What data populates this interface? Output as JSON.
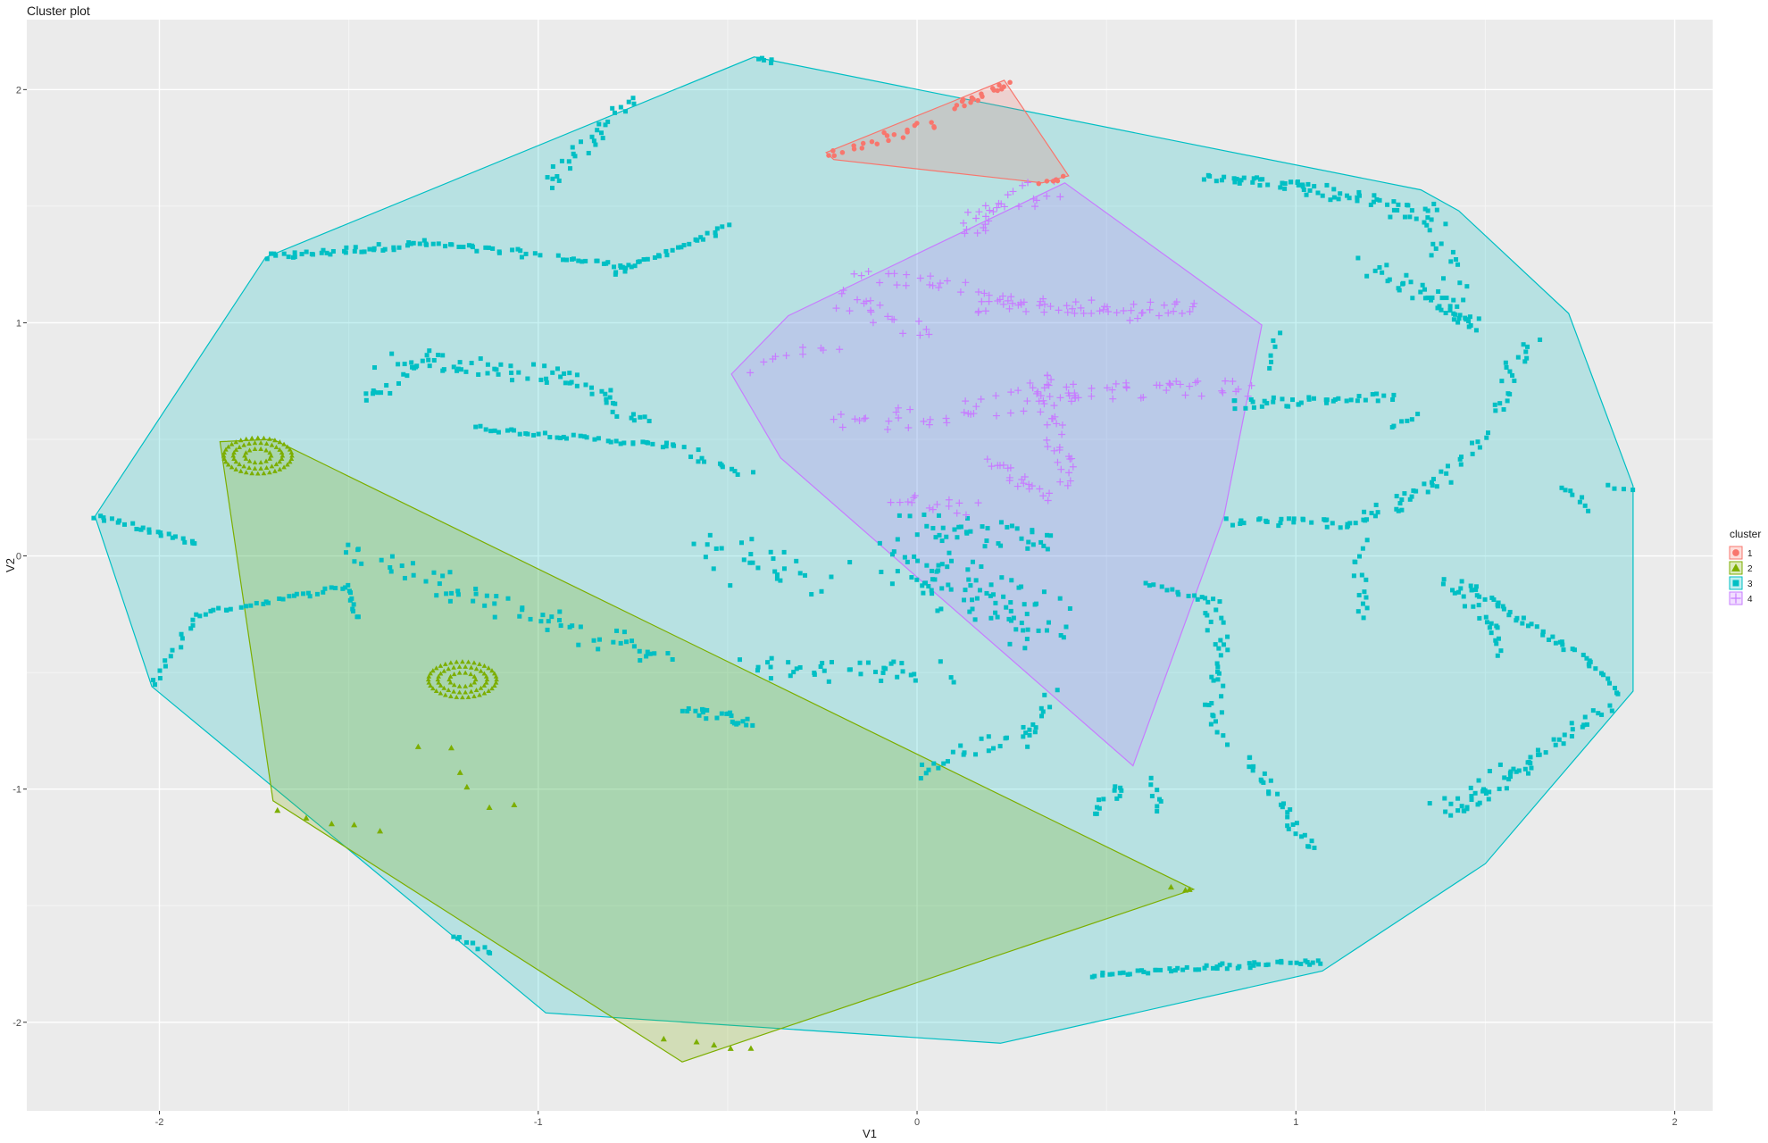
{
  "chart_data": {
    "type": "scatter",
    "title": "Cluster plot",
    "xlabel": "V1",
    "ylabel": "V2",
    "xlim": [
      -2.35,
      2.1
    ],
    "ylim": [
      -2.38,
      2.3
    ],
    "xticks": [
      -2,
      -1,
      0,
      1,
      2
    ],
    "yticks": [
      -2,
      -1,
      0,
      1,
      2
    ],
    "grid": true,
    "background": "#ebebeb",
    "legend": {
      "title": "cluster",
      "position": "right"
    },
    "series": [
      {
        "name": "1",
        "color": "#f8766d",
        "shape": "circle",
        "hull": [
          [
            -0.24,
            1.73
          ],
          [
            0.08,
            1.94
          ],
          [
            0.23,
            2.04
          ],
          [
            0.4,
            1.63
          ],
          [
            0.33,
            1.6
          ],
          [
            -0.22,
            1.7
          ]
        ],
        "segments": [
          {
            "from": [
              -0.23,
              1.72
            ],
            "to": [
              0.05,
              1.86
            ],
            "n": 22,
            "spread": 0.02
          },
          {
            "from": [
              0.1,
              1.92
            ],
            "to": [
              0.24,
              2.02
            ],
            "n": 18,
            "spread": 0.015
          },
          {
            "from": [
              0.33,
              1.6
            ],
            "to": [
              0.39,
              1.62
            ],
            "n": 6,
            "spread": 0.01
          }
        ]
      },
      {
        "name": "2",
        "color": "#7cae00",
        "shape": "triangle",
        "hull": [
          [
            -1.84,
            0.49
          ],
          [
            -1.7,
            0.5
          ],
          [
            0.73,
            -1.43
          ],
          [
            -0.62,
            -2.17
          ],
          [
            -1.7,
            -1.05
          ]
        ],
        "segments": [
          {
            "from": [
              -1.3,
              -0.8
            ],
            "to": [
              -1.1,
              -1.1
            ],
            "n": 6,
            "spread": 0.04
          },
          {
            "from": [
              -1.68,
              -1.1
            ],
            "to": [
              -1.4,
              -1.2
            ],
            "n": 5,
            "spread": 0.03
          },
          {
            "from": [
              -0.65,
              -2.08
            ],
            "to": [
              -0.45,
              -2.12
            ],
            "n": 5,
            "spread": 0.02
          },
          {
            "from": [
              0.68,
              -1.42
            ],
            "to": [
              0.72,
              -1.43
            ],
            "n": 3,
            "spread": 0.01
          }
        ],
        "rings": [
          {
            "center": [
              -1.74,
              0.43
            ],
            "radii": [
              0.035,
              0.065,
              0.09
            ]
          },
          {
            "center": [
              -1.2,
              -0.53
            ],
            "radii": [
              0.035,
              0.065,
              0.09
            ]
          }
        ]
      },
      {
        "name": "3",
        "color": "#00bfc4",
        "shape": "square",
        "hull": [
          [
            -2.17,
            0.17
          ],
          [
            -1.72,
            1.28
          ],
          [
            -0.43,
            2.14
          ],
          [
            1.33,
            1.57
          ],
          [
            1.43,
            1.48
          ],
          [
            1.72,
            1.04
          ],
          [
            1.89,
            0.3
          ],
          [
            1.89,
            -0.58
          ],
          [
            1.5,
            -1.32
          ],
          [
            1.07,
            -1.78
          ],
          [
            0.22,
            -2.09
          ],
          [
            -0.98,
            -1.96
          ],
          [
            -2.02,
            -0.56
          ]
        ],
        "segments": [
          {
            "from": [
              -1.72,
              1.28
            ],
            "to": [
              -1.3,
              1.34
            ],
            "n": 40,
            "spread": 0.015
          },
          {
            "from": [
              -1.3,
              1.34
            ],
            "to": [
              -1.0,
              1.29
            ],
            "n": 25,
            "spread": 0.015
          },
          {
            "from": [
              -0.95,
              1.28
            ],
            "to": [
              -0.75,
              1.24
            ],
            "n": 18,
            "spread": 0.01
          },
          {
            "from": [
              -0.8,
              1.21
            ],
            "to": [
              -0.5,
              1.41
            ],
            "n": 30,
            "spread": 0.01
          },
          {
            "from": [
              -0.98,
              1.58
            ],
            "to": [
              -0.75,
              1.97
            ],
            "n": 30,
            "spread": 0.03
          },
          {
            "from": [
              -0.42,
              2.13
            ],
            "to": [
              -0.38,
              2.12
            ],
            "n": 5,
            "spread": 0.01
          },
          {
            "from": [
              -1.45,
              0.66
            ],
            "to": [
              -1.34,
              0.85
            ],
            "n": 20,
            "spread": 0.05
          },
          {
            "from": [
              -1.34,
              0.85
            ],
            "to": [
              -0.93,
              0.77
            ],
            "n": 40,
            "spread": 0.04
          },
          {
            "from": [
              -0.93,
              0.77
            ],
            "to": [
              -0.72,
              0.58
            ],
            "n": 25,
            "spread": 0.03
          },
          {
            "from": [
              -1.17,
              0.55
            ],
            "to": [
              -0.65,
              0.47
            ],
            "n": 40,
            "spread": 0.01
          },
          {
            "from": [
              -0.65,
              0.47
            ],
            "to": [
              -0.45,
              0.35
            ],
            "n": 15,
            "spread": 0.02
          },
          {
            "from": [
              -2.17,
              0.17
            ],
            "to": [
              -1.9,
              0.05
            ],
            "n": 25,
            "spread": 0.01
          },
          {
            "from": [
              -2.02,
              -0.56
            ],
            "to": [
              -1.9,
              -0.25
            ],
            "n": 15,
            "spread": 0.01
          },
          {
            "from": [
              -1.9,
              -0.25
            ],
            "to": [
              -1.5,
              -0.13
            ],
            "n": 30,
            "spread": 0.01
          },
          {
            "from": [
              -1.5,
              -0.13
            ],
            "to": [
              -1.48,
              -0.27
            ],
            "n": 10,
            "spread": 0.01
          },
          {
            "from": [
              -1.48,
              0.02
            ],
            "to": [
              -0.75,
              -0.4
            ],
            "n": 60,
            "spread": 0.05
          },
          {
            "from": [
              -0.75,
              -0.4
            ],
            "to": [
              -0.65,
              -0.44
            ],
            "n": 8,
            "spread": 0.02
          },
          {
            "from": [
              -0.6,
              -0.65
            ],
            "to": [
              -0.45,
              -0.72
            ],
            "n": 25,
            "spread": 0.02
          },
          {
            "from": [
              -0.55,
              0.02
            ],
            "to": [
              -0.25,
              -0.1
            ],
            "n": 30,
            "spread": 0.1
          },
          {
            "from": [
              -0.45,
              -0.48
            ],
            "to": [
              0.08,
              -0.5
            ],
            "n": 40,
            "spread": 0.05
          },
          {
            "from": [
              -0.06,
              -0.0
            ],
            "to": [
              0.35,
              -0.3
            ],
            "n": 90,
            "spread": 0.1
          },
          {
            "from": [
              0.0,
              0.15
            ],
            "to": [
              0.35,
              0.05
            ],
            "n": 40,
            "spread": 0.05
          },
          {
            "from": [
              0.0,
              -0.93
            ],
            "to": [
              0.3,
              -0.72
            ],
            "n": 25,
            "spread": 0.03
          },
          {
            "from": [
              0.28,
              -0.8
            ],
            "to": [
              0.36,
              -0.58
            ],
            "n": 10,
            "spread": 0.02
          },
          {
            "from": [
              0.6,
              -0.12
            ],
            "to": [
              0.79,
              -0.2
            ],
            "n": 15,
            "spread": 0.01
          },
          {
            "from": [
              0.79,
              -0.2
            ],
            "to": [
              0.79,
              -0.78
            ],
            "n": 35,
            "spread": 0.03
          },
          {
            "from": [
              0.46,
              -1.1
            ],
            "to": [
              0.55,
              -0.98
            ],
            "n": 12,
            "spread": 0.02
          },
          {
            "from": [
              0.62,
              -0.96
            ],
            "to": [
              0.64,
              -1.1
            ],
            "n": 8,
            "spread": 0.01
          },
          {
            "from": [
              0.88,
              -0.86
            ],
            "to": [
              1.04,
              -1.27
            ],
            "n": 30,
            "spread": 0.02
          },
          {
            "from": [
              0.46,
              -1.8
            ],
            "to": [
              0.8,
              -1.76
            ],
            "n": 30,
            "spread": 0.008
          },
          {
            "from": [
              0.8,
              -1.76
            ],
            "to": [
              1.07,
              -1.74
            ],
            "n": 25,
            "spread": 0.012
          },
          {
            "from": [
              -1.23,
              -1.63
            ],
            "to": [
              -1.12,
              -1.7
            ],
            "n": 10,
            "spread": 0.01
          },
          {
            "from": [
              0.83,
              0.65
            ],
            "to": [
              1.25,
              0.68
            ],
            "n": 40,
            "spread": 0.02
          },
          {
            "from": [
              1.25,
              0.55
            ],
            "to": [
              1.32,
              0.6
            ],
            "n": 6,
            "spread": 0.01
          },
          {
            "from": [
              0.95,
              0.95
            ],
            "to": [
              0.93,
              0.8
            ],
            "n": 6,
            "spread": 0.01
          },
          {
            "from": [
              0.82,
              0.15
            ],
            "to": [
              1.15,
              0.14
            ],
            "n": 30,
            "spread": 0.02
          },
          {
            "from": [
              1.15,
              0.14
            ],
            "to": [
              1.37,
              0.3
            ],
            "n": 25,
            "spread": 0.03
          },
          {
            "from": [
              1.37,
              0.3
            ],
            "to": [
              1.51,
              0.52
            ],
            "n": 15,
            "spread": 0.02
          },
          {
            "from": [
              1.52,
              0.6
            ],
            "to": [
              1.62,
              0.95
            ],
            "n": 20,
            "spread": 0.03
          },
          {
            "from": [
              0.77,
              1.63
            ],
            "to": [
              1.03,
              1.58
            ],
            "n": 30,
            "spread": 0.02
          },
          {
            "from": [
              1.03,
              1.58
            ],
            "to": [
              1.36,
              1.45
            ],
            "n": 40,
            "spread": 0.03
          },
          {
            "from": [
              1.19,
              1.25
            ],
            "to": [
              1.36,
              1.1
            ],
            "n": 20,
            "spread": 0.03
          },
          {
            "from": [
              1.36,
              1.1
            ],
            "to": [
              1.46,
              0.98
            ],
            "n": 20,
            "spread": 0.03
          },
          {
            "from": [
              1.35,
              1.5
            ],
            "to": [
              1.45,
              1.0
            ],
            "n": 25,
            "spread": 0.04
          },
          {
            "from": [
              1.17,
              0.05
            ],
            "to": [
              1.17,
              -0.28
            ],
            "n": 15,
            "spread": 0.02
          },
          {
            "from": [
              1.39,
              -0.1
            ],
            "to": [
              1.52,
              -0.3
            ],
            "n": 15,
            "spread": 0.02
          },
          {
            "from": [
              1.52,
              -0.3
            ],
            "to": [
              1.54,
              -0.42
            ],
            "n": 8,
            "spread": 0.01
          },
          {
            "from": [
              1.44,
              -0.12
            ],
            "to": [
              1.77,
              -0.45
            ],
            "n": 40,
            "spread": 0.015
          },
          {
            "from": [
              1.77,
              -0.45
            ],
            "to": [
              1.85,
              -0.6
            ],
            "n": 10,
            "spread": 0.01
          },
          {
            "from": [
              1.38,
              -1.1
            ],
            "to": [
              1.6,
              -0.9
            ],
            "n": 40,
            "spread": 0.04
          },
          {
            "from": [
              1.6,
              -0.9
            ],
            "to": [
              1.82,
              -0.65
            ],
            "n": 25,
            "spread": 0.02
          },
          {
            "from": [
              1.7,
              0.3
            ],
            "to": [
              1.78,
              0.2
            ],
            "n": 8,
            "spread": 0.01
          },
          {
            "from": [
              1.82,
              0.3
            ],
            "to": [
              1.89,
              0.28
            ],
            "n": 4,
            "spread": 0.01
          }
        ]
      },
      {
        "name": "4",
        "color": "#c77cff",
        "shape": "plus",
        "hull": [
          [
            -0.49,
            0.78
          ],
          [
            -0.34,
            1.03
          ],
          [
            0.39,
            1.6
          ],
          [
            0.91,
            0.99
          ],
          [
            0.81,
            0.17
          ],
          [
            0.57,
            -0.9
          ],
          [
            -0.36,
            0.42
          ]
        ],
        "segments": [
          {
            "from": [
              0.1,
              1.4
            ],
            "to": [
              0.34,
              1.58
            ],
            "n": 30,
            "spread": 0.04
          },
          {
            "from": [
              -0.15,
              1.2
            ],
            "to": [
              0.15,
              1.15
            ],
            "n": 20,
            "spread": 0.03
          },
          {
            "from": [
              -0.2,
              1.1
            ],
            "to": [
              0.0,
              0.95
            ],
            "n": 20,
            "spread": 0.05
          },
          {
            "from": [
              0.15,
              1.08
            ],
            "to": [
              0.45,
              1.08
            ],
            "n": 35,
            "spread": 0.04
          },
          {
            "from": [
              0.5,
              1.05
            ],
            "to": [
              0.72,
              1.05
            ],
            "n": 25,
            "spread": 0.04
          },
          {
            "from": [
              -0.2,
              0.55
            ],
            "to": [
              0.4,
              0.7
            ],
            "n": 40,
            "spread": 0.05
          },
          {
            "from": [
              0.35,
              0.7
            ],
            "to": [
              0.9,
              0.72
            ],
            "n": 40,
            "spread": 0.04
          },
          {
            "from": [
              0.32,
              0.8
            ],
            "to": [
              0.4,
              0.3
            ],
            "n": 35,
            "spread": 0.03
          },
          {
            "from": [
              0.2,
              0.4
            ],
            "to": [
              0.35,
              0.25
            ],
            "n": 20,
            "spread": 0.03
          },
          {
            "from": [
              -0.05,
              0.25
            ],
            "to": [
              0.15,
              0.2
            ],
            "n": 15,
            "spread": 0.03
          },
          {
            "from": [
              -0.2,
              0.9
            ],
            "to": [
              -0.45,
              0.8
            ],
            "n": 10,
            "spread": 0.03
          }
        ]
      }
    ]
  }
}
